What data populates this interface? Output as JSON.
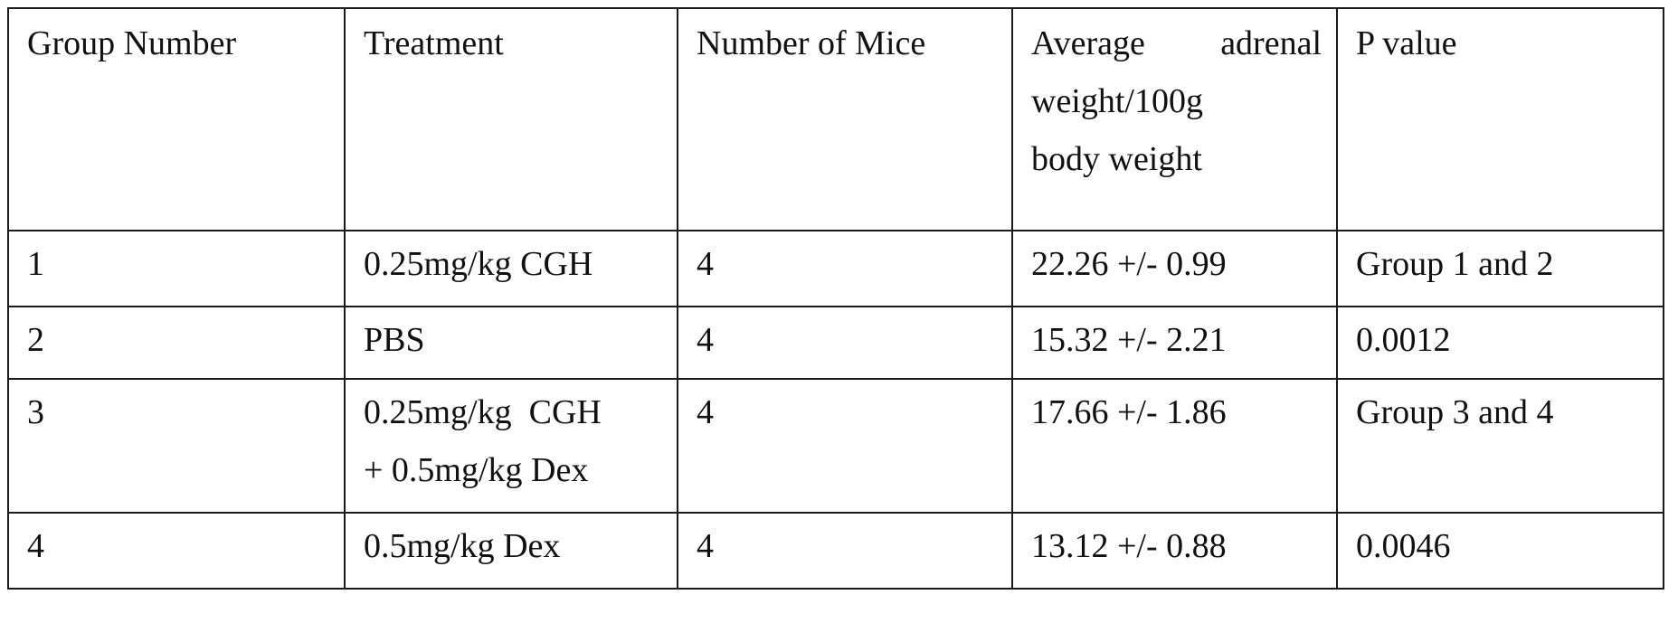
{
  "table": {
    "headers": {
      "group_number": "Group Number",
      "treatment": "Treatment",
      "number_of_mice": "Number of Mice",
      "average_weight": {
        "line1_word1": "Average",
        "line1_word2": "adrenal",
        "line2": "weight/100g",
        "line3": "body weight"
      },
      "p_value": "P value"
    },
    "rows": [
      {
        "group": "1",
        "treatment_line1": "0.25mg/kg CGH",
        "treatment_line2": "",
        "mice": "4",
        "weight": "22.26 +/- 0.99",
        "p_value": "Group 1 and 2"
      },
      {
        "group": "2",
        "treatment_line1": "PBS",
        "treatment_line2": "",
        "mice": "4",
        "weight": "15.32 +/- 2.21",
        "p_value": "0.0012"
      },
      {
        "group": "3",
        "treatment_line1": "0.25mg/kg  CGH",
        "treatment_line2": "+ 0.5mg/kg Dex",
        "mice": "4",
        "weight": "17.66 +/- 1.86",
        "p_value": "Group 3 and 4"
      },
      {
        "group": "4",
        "treatment_line1": "0.5mg/kg Dex",
        "treatment_line2": "",
        "mice": "4",
        "weight": "13.12 +/- 0.88",
        "p_value": "0.0046"
      }
    ]
  }
}
